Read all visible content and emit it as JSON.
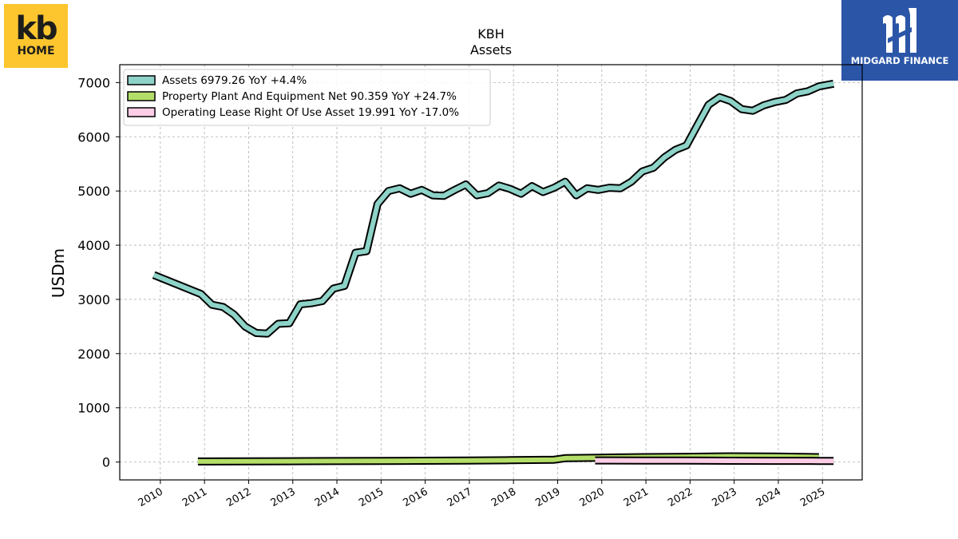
{
  "brand": {
    "left_logo_top": "kb",
    "left_logo_bottom": "HOME",
    "right_logo_text": "MIDGARD FINANCE"
  },
  "colors": {
    "assets": "#8dd3c7",
    "ppe": "#b3de69",
    "lease": "#fccde5",
    "outline": "#000000",
    "grid": "#b0b0b0",
    "kb_logo_bg": "#fdc62f",
    "midgard_logo_bg": "#2b56a8"
  },
  "chart_data": {
    "type": "line",
    "title": "KBH",
    "subtitle": "Assets",
    "ylabel": "USDm",
    "xlabel": "",
    "ylim": [
      -330,
      7330
    ],
    "xlim": [
      2009.08,
      2025.9
    ],
    "yticks": [
      0,
      1000,
      2000,
      3000,
      4000,
      5000,
      6000,
      7000
    ],
    "xticks": [
      "2010",
      "2011",
      "2012",
      "2013",
      "2014",
      "2015",
      "2016",
      "2017",
      "2018",
      "2019",
      "2020",
      "2021",
      "2022",
      "2023",
      "2024",
      "2025"
    ],
    "grid": true,
    "legend_position": "top-left",
    "series": [
      {
        "name": "Assets",
        "legend_label": "Assets  6979.26 YoY +4.4%",
        "color": "#8dd3c7",
        "x": [
          2009.85,
          2010.92,
          2011.17,
          2011.42,
          2011.67,
          2011.92,
          2012.17,
          2012.42,
          2012.67,
          2012.92,
          2013.17,
          2013.42,
          2013.67,
          2013.92,
          2014.17,
          2014.42,
          2014.67,
          2014.92,
          2015.17,
          2015.42,
          2015.67,
          2015.92,
          2016.17,
          2016.42,
          2016.67,
          2016.92,
          2017.17,
          2017.42,
          2017.67,
          2017.92,
          2018.17,
          2018.42,
          2018.67,
          2018.92,
          2019.17,
          2019.42,
          2019.67,
          2019.92,
          2020.17,
          2020.42,
          2020.67,
          2020.92,
          2021.17,
          2021.42,
          2021.67,
          2021.92,
          2022.17,
          2022.42,
          2022.67,
          2022.92,
          2023.17,
          2023.42,
          2023.67,
          2023.92,
          2024.17,
          2024.42,
          2024.67,
          2024.92,
          2025.25
        ],
        "values": [
          3450,
          3100,
          2900,
          2860,
          2720,
          2500,
          2380,
          2370,
          2550,
          2560,
          2910,
          2930,
          2970,
          3200,
          3250,
          3860,
          3890,
          4760,
          5000,
          5050,
          4950,
          5020,
          4920,
          4910,
          5020,
          5120,
          4920,
          4960,
          5100,
          5040,
          4950,
          5090,
          4980,
          5060,
          5170,
          4920,
          5050,
          5020,
          5060,
          5050,
          5170,
          5360,
          5430,
          5620,
          5760,
          5840,
          6220,
          6590,
          6730,
          6660,
          6510,
          6480,
          6580,
          6640,
          6680,
          6800,
          6840,
          6930,
          6979.26
        ]
      },
      {
        "name": "Property Plant And Equipment Net",
        "legend_label": "Property Plant And Equipment Net  90.359 YoY +24.7%",
        "color": "#b3de69",
        "x": [
          2010.85,
          2011.92,
          2012.92,
          2013.92,
          2014.92,
          2015.92,
          2016.92,
          2017.92,
          2018.92,
          2019.17,
          2019.92,
          2020.92,
          2021.92,
          2022.92,
          2023.92,
          2024.92
        ],
        "values": [
          10,
          12,
          14,
          17,
          20,
          24,
          28,
          34,
          42,
          70,
          80,
          90,
          95,
          105,
          100,
          90.359
        ]
      },
      {
        "name": "Operating Lease Right Of Use Asset",
        "legend_label": "Operating Lease Right Of Use Asset  19.991 YoY -17.0%",
        "color": "#fccde5",
        "x": [
          2019.85,
          2020.92,
          2021.92,
          2022.92,
          2023.92,
          2024.92,
          2025.25
        ],
        "values": [
          30,
          28,
          26,
          24,
          22,
          21,
          19.991
        ]
      }
    ]
  }
}
